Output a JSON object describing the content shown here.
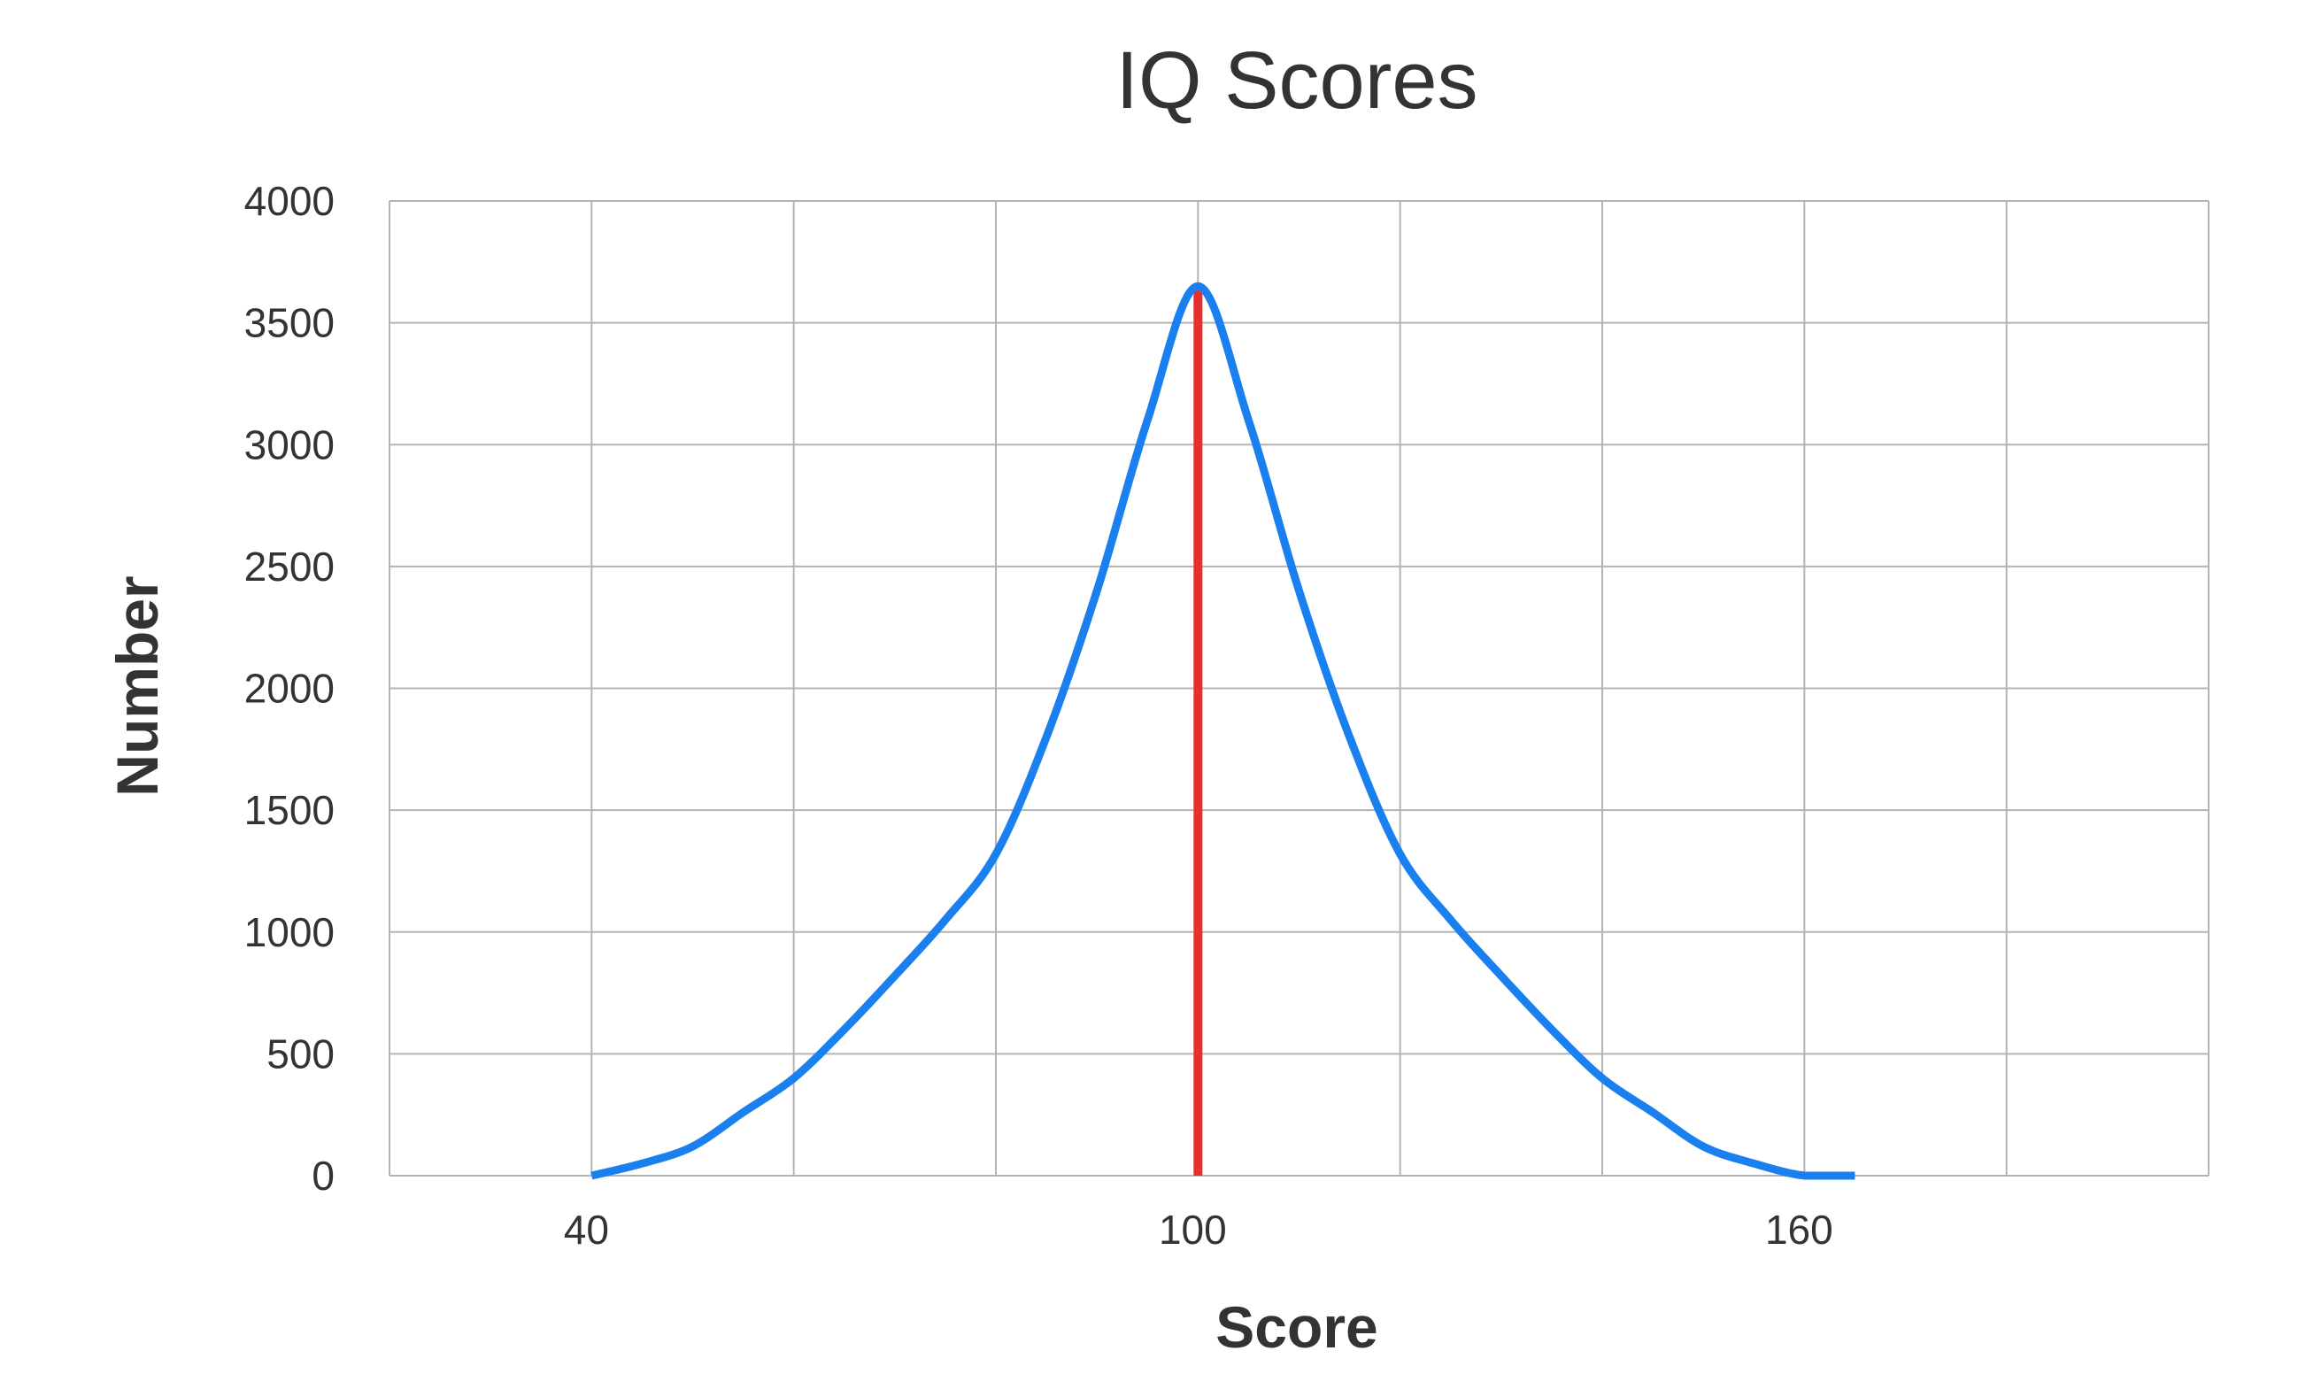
{
  "chart_data": {
    "type": "line",
    "title": "IQ Scores",
    "xlabel": "Score",
    "ylabel": "Number",
    "xlim": [
      20,
      200
    ],
    "ylim": [
      0,
      4000
    ],
    "x_ticks": [
      40,
      100,
      160
    ],
    "x_gridlines": [
      20,
      40,
      60,
      80,
      100,
      120,
      140,
      160,
      180
    ],
    "y_ticks": [
      0,
      500,
      1000,
      1500,
      2000,
      2500,
      3000,
      3500,
      4000
    ],
    "grid": true,
    "legend": "none",
    "series": [
      {
        "color": "#1a80f0",
        "x": [
          40,
          45,
          50,
          55,
          60,
          65,
          70,
          75,
          80,
          85,
          90,
          95,
          100,
          105,
          110,
          115,
          120,
          125,
          130,
          135,
          140,
          145,
          150,
          155,
          160,
          165,
          170
        ],
        "y": [
          0,
          50,
          120,
          260,
          400,
          600,
          820,
          1050,
          1320,
          1800,
          2400,
          3100,
          3650,
          3100,
          2400,
          1800,
          1320,
          1050,
          820,
          600,
          400,
          260,
          120,
          50,
          0,
          0,
          0
        ]
      }
    ],
    "mean_line": {
      "x": 100,
      "y_max": 3650,
      "color": "#e53030"
    }
  }
}
